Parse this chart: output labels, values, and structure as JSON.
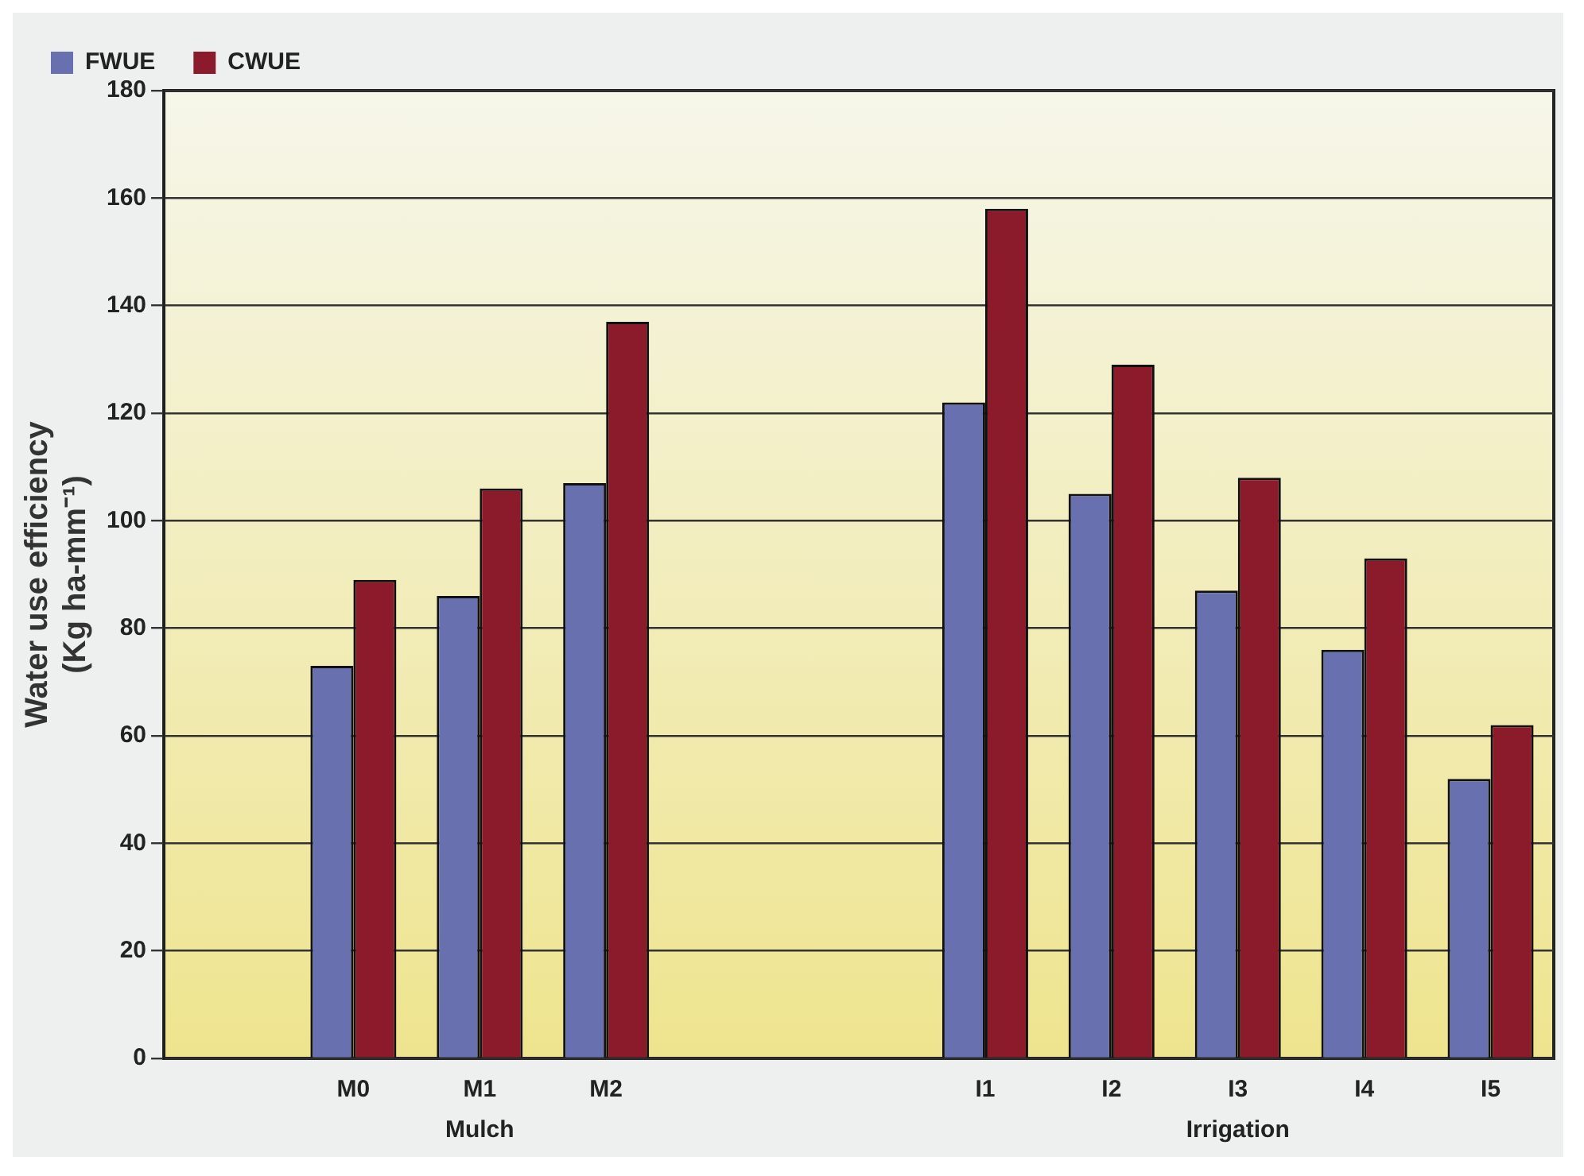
{
  "chart_data": {
    "type": "bar",
    "ylabel": "Water use efficiency\n(Kg ha-mm⁻¹)",
    "categories": [
      null,
      "M0",
      "M1",
      "M2",
      null,
      null,
      "I1",
      "I2",
      "I3",
      "I4",
      "I5"
    ],
    "series": [
      {
        "name": "FWUE",
        "color": "#6870b0",
        "values": [
          null,
          73,
          86,
          107,
          null,
          null,
          122,
          105,
          87,
          76,
          52
        ]
      },
      {
        "name": "CWUE",
        "color": "#8b1a2a",
        "values": [
          null,
          89,
          106,
          137,
          null,
          null,
          158,
          129,
          108,
          93,
          62
        ]
      }
    ],
    "ylim": [
      0,
      180
    ],
    "yticks": [
      0,
      20,
      40,
      60,
      80,
      100,
      120,
      140,
      160,
      180
    ],
    "grid": "y",
    "legend": "top left",
    "annotations": [
      "Mulch",
      "Irrigation"
    ]
  }
}
